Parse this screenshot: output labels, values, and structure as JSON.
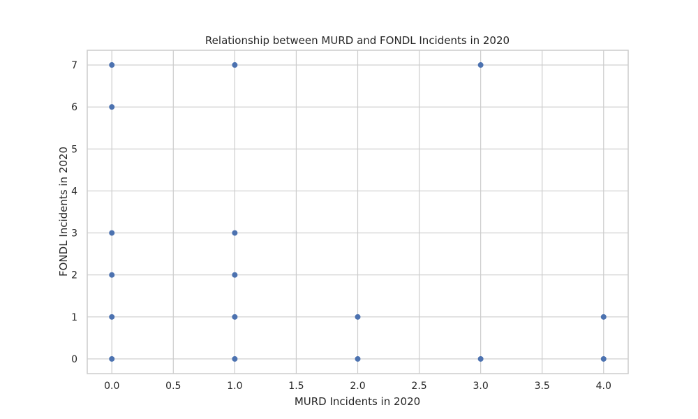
{
  "chart_data": {
    "type": "scatter",
    "title": "Relationship between MURD and FONDL Incidents in 2020",
    "xlabel": "MURD Incidents in 2020",
    "ylabel": "FONDL Incidents in 2020",
    "xlim": [
      -0.2,
      4.2
    ],
    "ylim": [
      -0.35,
      7.35
    ],
    "xticks": [
      "0.0",
      "0.5",
      "1.0",
      "1.5",
      "2.0",
      "2.5",
      "3.0",
      "3.5",
      "4.0"
    ],
    "yticks": [
      "0",
      "1",
      "2",
      "3",
      "4",
      "5",
      "6",
      "7"
    ],
    "grid": true,
    "point_color": "#4c72b0",
    "points": [
      {
        "x": 0,
        "y": 7
      },
      {
        "x": 0,
        "y": 6
      },
      {
        "x": 0,
        "y": 3
      },
      {
        "x": 0,
        "y": 2
      },
      {
        "x": 0,
        "y": 1
      },
      {
        "x": 0,
        "y": 0
      },
      {
        "x": 1,
        "y": 7
      },
      {
        "x": 1,
        "y": 3
      },
      {
        "x": 1,
        "y": 2
      },
      {
        "x": 1,
        "y": 1
      },
      {
        "x": 1,
        "y": 0
      },
      {
        "x": 2,
        "y": 1
      },
      {
        "x": 2,
        "y": 0
      },
      {
        "x": 3,
        "y": 7
      },
      {
        "x": 3,
        "y": 0
      },
      {
        "x": 4,
        "y": 1
      },
      {
        "x": 4,
        "y": 0
      }
    ]
  }
}
